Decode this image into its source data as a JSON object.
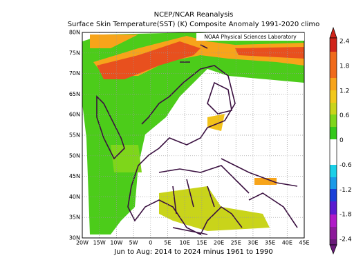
{
  "header": {
    "title": "NCEP/NCAR Reanalysis",
    "subtitle": "Surface Skin Temperature(SST) (K) Composite Anomaly 1991-2020 climo"
  },
  "map": {
    "credit": "NOAA Physical Sciences Laboratory",
    "x_labels": [
      "20W",
      "15W",
      "10W",
      "5W",
      "0",
      "5E",
      "10E",
      "15E",
      "20E",
      "25E",
      "30E",
      "35E",
      "40E",
      "45E"
    ],
    "y_labels": [
      "80N",
      "75N",
      "70N",
      "65N",
      "60N",
      "55N",
      "50N",
      "45N",
      "40N",
      "35N",
      "30N"
    ],
    "caption": "Jun to Aug: 2014 to 2024 minus 1961 to 1990"
  },
  "colorbar": {
    "labels": [
      "2.4",
      "1.8",
      "1.2",
      "0.6",
      "0",
      "-0.6",
      "-1.2",
      "-1.8",
      "-2.4"
    ]
  }
}
